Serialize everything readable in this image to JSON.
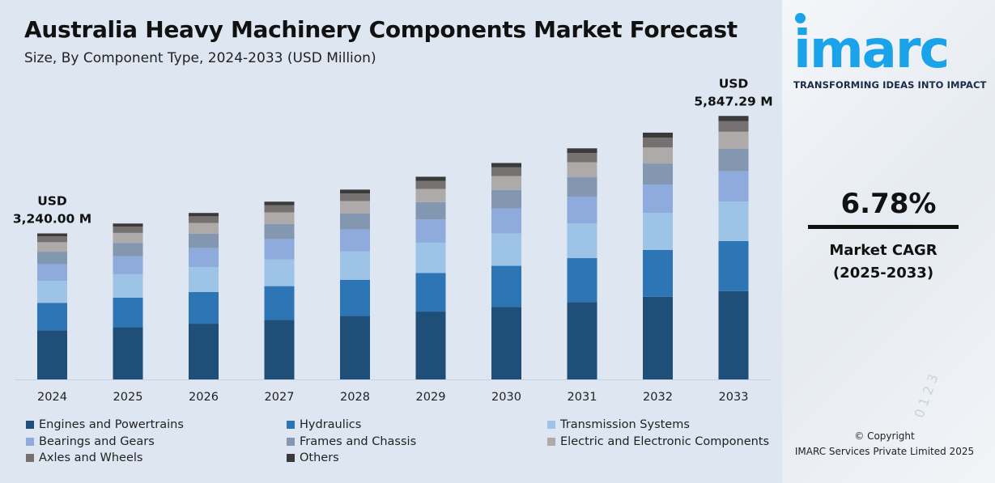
{
  "title": "Australia Heavy Machinery Components Market Forecast",
  "subtitle": "Size, By Component Type, 2024-2033 (USD Million)",
  "side_panel": {
    "logo": "imarc",
    "tagline": "TRANSFORMING IDEAS INTO IMPACT",
    "cagr_value": "6.78%",
    "cagr_label_1": "Market CAGR",
    "cagr_label_2": "(2025-2033)",
    "copyright_1": "© Copyright",
    "copyright_2": "IMARC Services Private Limited 2025"
  },
  "colors": {
    "panel_bg": "#dde6f1",
    "logo_blue": "#1aa3e8"
  },
  "chart_data": {
    "type": "bar",
    "stacked": true,
    "categories": [
      "2024",
      "2025",
      "2026",
      "2027",
      "2028",
      "2029",
      "2030",
      "2031",
      "2032",
      "2033"
    ],
    "totals": [
      3240.0,
      3459.7,
      3694.3,
      3944.8,
      4212.3,
      4497.9,
      4802.9,
      5128.5,
      5476.3,
      5847.29
    ],
    "ylim": [
      0,
      6000
    ],
    "annotations": [
      {
        "category": "2024",
        "line1": "USD",
        "line2": "3,240.00 M"
      },
      {
        "category": "2033",
        "line1": "USD",
        "line2": "5,847.29 M"
      }
    ],
    "series": [
      {
        "name": "Engines and Powertrains",
        "color": "#1f4e79",
        "share": 0.335
      },
      {
        "name": "Hydraulics",
        "color": "#2e75b6",
        "share": 0.19
      },
      {
        "name": "Transmission Systems",
        "color": "#9dc3e6",
        "share": 0.15
      },
      {
        "name": "Bearings and Gears",
        "color": "#8faadc",
        "share": 0.115
      },
      {
        "name": "Frames and Chassis",
        "color": "#8497b0",
        "share": 0.085
      },
      {
        "name": "Electric and Electronic Components",
        "color": "#aeaaaa",
        "share": 0.065
      },
      {
        "name": "Axles and Wheels",
        "color": "#767171",
        "share": 0.04
      },
      {
        "name": "Others",
        "color": "#3a3a3a",
        "share": 0.02
      }
    ],
    "legend_position": "bottom",
    "grid": false
  }
}
